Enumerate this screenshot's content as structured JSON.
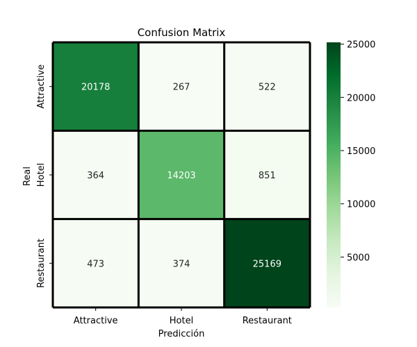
{
  "chart_data": {
    "type": "heatmap",
    "title": "Confusion Matrix",
    "xlabel": "Predicción",
    "ylabel": "Real",
    "x_categories": [
      "Attractive",
      "Hotel",
      "Restaurant"
    ],
    "y_categories": [
      "Attractive",
      "Hotel",
      "Restaurant"
    ],
    "values": [
      [
        20178,
        267,
        522
      ],
      [
        364,
        14203,
        851
      ],
      [
        473,
        374,
        25169
      ]
    ],
    "colormap": "Greens",
    "colorbar": {
      "ticks": [
        5000,
        10000,
        15000,
        20000,
        25000
      ],
      "range": [
        267,
        25169
      ]
    },
    "cell_border_color": "#000000"
  }
}
